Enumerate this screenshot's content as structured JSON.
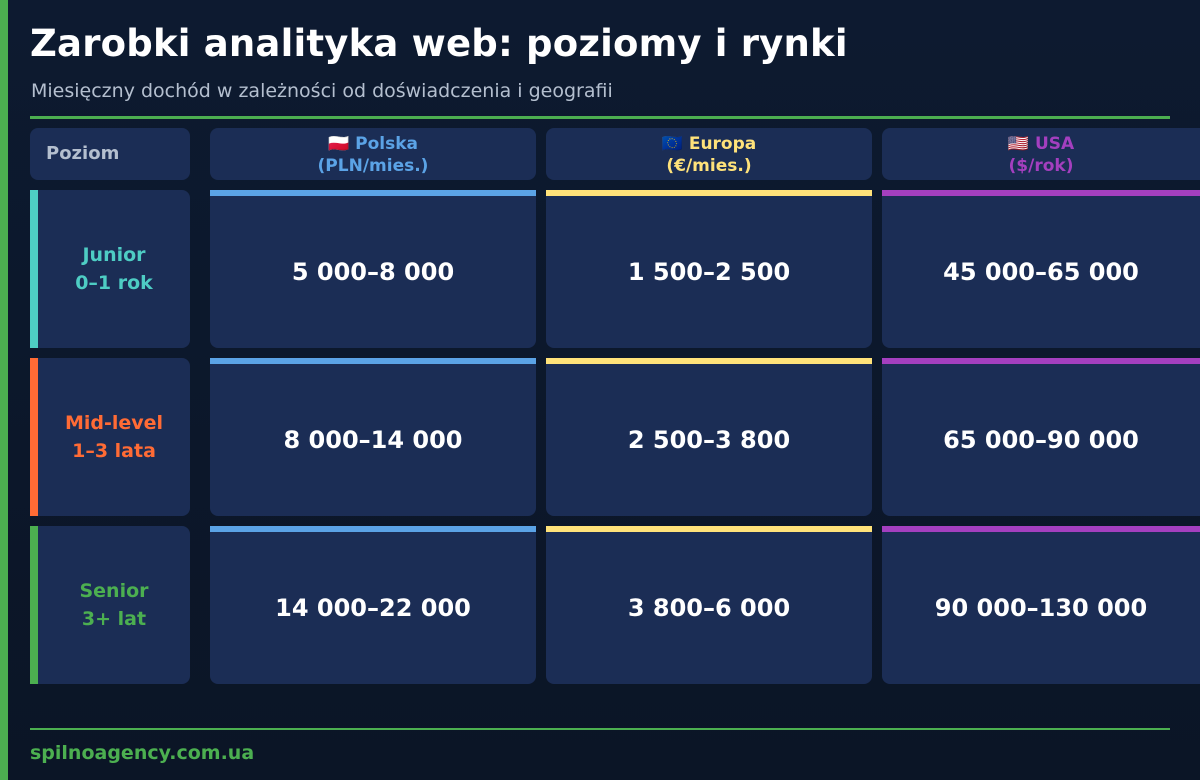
{
  "header": {
    "title": "Zarobki analityka web: poziomy i rynki",
    "subtitle": "Miesięczny dochód w zależności od doświadczenia i geografii"
  },
  "table": {
    "level_header": "Poziom",
    "columns": [
      {
        "flag": "🇵🇱",
        "name": "Polska",
        "unit": "(PLN/mies.)",
        "color": "#5ba3e6"
      },
      {
        "flag": "🇪🇺",
        "name": "Europa",
        "unit": "(€/mies.)",
        "color": "#ffe27a"
      },
      {
        "flag": "🇺🇸",
        "name": "USA",
        "unit": "($/rok)",
        "color": "#a43fbf"
      }
    ],
    "rows": [
      {
        "level": "Junior",
        "experience": "0–1 rok",
        "color": "#4ecdc4",
        "values": [
          "5 000–8 000",
          "1 500–2 500",
          "45 000–65 000"
        ]
      },
      {
        "level": "Mid-level",
        "experience": "1–3 lata",
        "color": "#ff6b35",
        "values": [
          "8 000–14 000",
          "2 500–3 800",
          "65 000–90 000"
        ]
      },
      {
        "level": "Senior",
        "experience": "3+ lat",
        "color": "#4caf50",
        "values": [
          "14 000–22 000",
          "3 800–6 000",
          "90 000–130 000"
        ]
      }
    ]
  },
  "footer": {
    "site": "spilnoagency.com.ua"
  },
  "colors": {
    "accent": "#4caf50",
    "background": "#0d1a30",
    "cell": "#1b2d55"
  }
}
